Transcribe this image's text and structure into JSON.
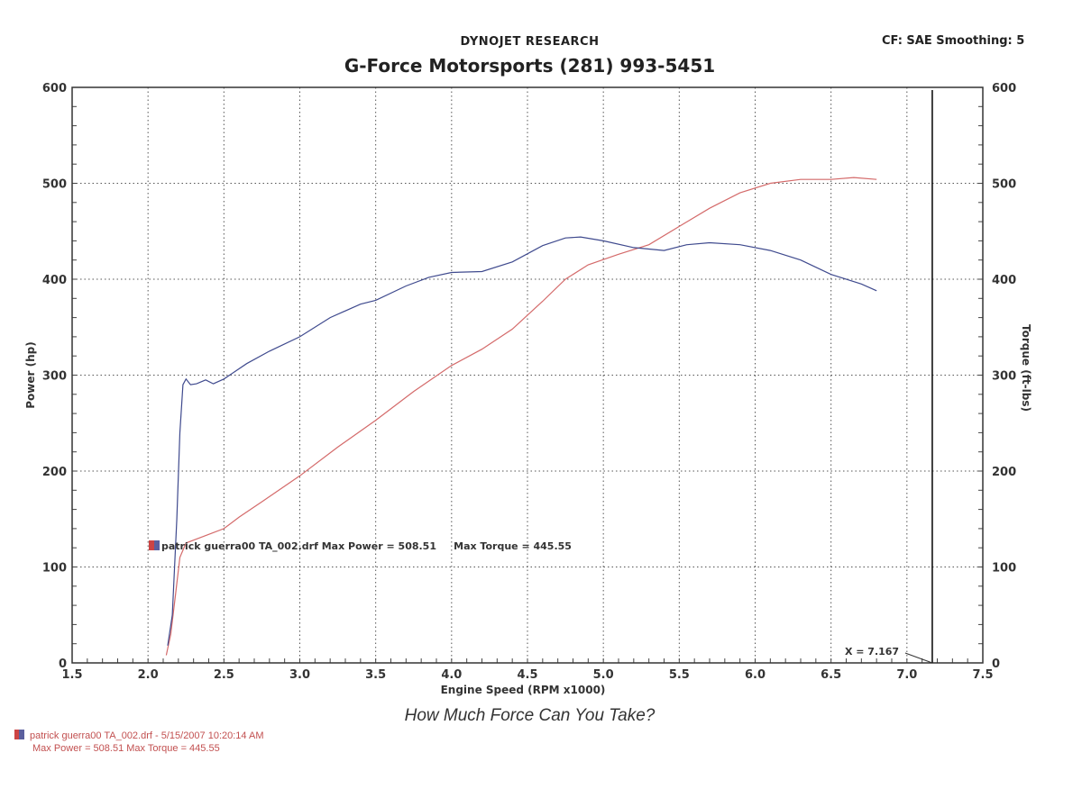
{
  "header": {
    "company": "DYNOJET RESEARCH",
    "settings": "CF: SAE  Smoothing: 5",
    "title": "G-Force Motorsports (281) 993-5451"
  },
  "slogan": "How Much Force Can You Take?",
  "footer": {
    "line1": "patrick guerra00 TA_002.drf - 5/15/2007 10:20:14 AM",
    "line2": "Max Power = 508.51  Max Torque = 445.55"
  },
  "chart_data": {
    "type": "line",
    "xlabel": "Engine Speed (RPM x1000)",
    "ylabel": "Power (hp)",
    "y2label": "Torque (ft-lbs)",
    "xlim": [
      1.5,
      7.5
    ],
    "ylim": [
      0,
      600
    ],
    "y2lim": [
      0,
      600
    ],
    "grid": true,
    "x_ticks": [
      "1.5",
      "2.0",
      "2.5",
      "3.0",
      "3.5",
      "4.0",
      "4.5",
      "5.0",
      "5.5",
      "6.0",
      "6.5",
      "7.0",
      "7.5"
    ],
    "y_ticks": [
      "0",
      "100",
      "200",
      "300",
      "400",
      "500",
      "600"
    ],
    "y2_ticks": [
      "0",
      "100",
      "200",
      "300",
      "400",
      "500",
      "600"
    ],
    "legend_text": "patrick guerra00 TA_002.drf Max Power = 508.51     Max Torque = 445.55",
    "cursor": {
      "x": 7.167,
      "label": "X = 7.167"
    },
    "series": [
      {
        "color": "#d46a6a",
        "axis": "power",
        "points": [
          [
            2.12,
            8
          ],
          [
            2.15,
            30
          ],
          [
            2.18,
            70
          ],
          [
            2.21,
            110
          ],
          [
            2.25,
            125
          ],
          [
            2.3,
            128
          ],
          [
            2.4,
            134
          ],
          [
            2.5,
            140
          ],
          [
            2.6,
            152
          ],
          [
            2.75,
            168
          ],
          [
            3.0,
            195
          ],
          [
            3.25,
            225
          ],
          [
            3.5,
            253
          ],
          [
            3.75,
            283
          ],
          [
            4.0,
            310
          ],
          [
            4.2,
            327
          ],
          [
            4.4,
            348
          ],
          [
            4.6,
            377
          ],
          [
            4.75,
            400
          ],
          [
            4.9,
            415
          ],
          [
            5.1,
            426
          ],
          [
            5.3,
            436
          ],
          [
            5.5,
            455
          ],
          [
            5.7,
            474
          ],
          [
            5.9,
            490
          ],
          [
            6.1,
            500
          ],
          [
            6.3,
            504
          ],
          [
            6.5,
            504
          ],
          [
            6.65,
            506
          ],
          [
            6.8,
            504
          ]
        ]
      },
      {
        "color": "#3f4a8e",
        "axis": "torque",
        "points": [
          [
            2.13,
            18
          ],
          [
            2.16,
            50
          ],
          [
            2.19,
            150
          ],
          [
            2.21,
            240
          ],
          [
            2.23,
            290
          ],
          [
            2.25,
            296
          ],
          [
            2.28,
            290
          ],
          [
            2.32,
            291
          ],
          [
            2.38,
            295
          ],
          [
            2.43,
            291
          ],
          [
            2.5,
            296
          ],
          [
            2.65,
            312
          ],
          [
            2.8,
            325
          ],
          [
            3.0,
            340
          ],
          [
            3.2,
            360
          ],
          [
            3.4,
            374
          ],
          [
            3.5,
            378
          ],
          [
            3.7,
            393
          ],
          [
            3.85,
            402
          ],
          [
            4.0,
            407
          ],
          [
            4.2,
            408
          ],
          [
            4.4,
            418
          ],
          [
            4.6,
            435
          ],
          [
            4.75,
            443
          ],
          [
            4.85,
            444
          ],
          [
            5.0,
            440
          ],
          [
            5.2,
            433
          ],
          [
            5.4,
            430
          ],
          [
            5.55,
            436
          ],
          [
            5.7,
            438
          ],
          [
            5.9,
            436
          ],
          [
            6.1,
            430
          ],
          [
            6.3,
            420
          ],
          [
            6.5,
            405
          ],
          [
            6.7,
            395
          ],
          [
            6.8,
            388
          ]
        ]
      }
    ]
  }
}
